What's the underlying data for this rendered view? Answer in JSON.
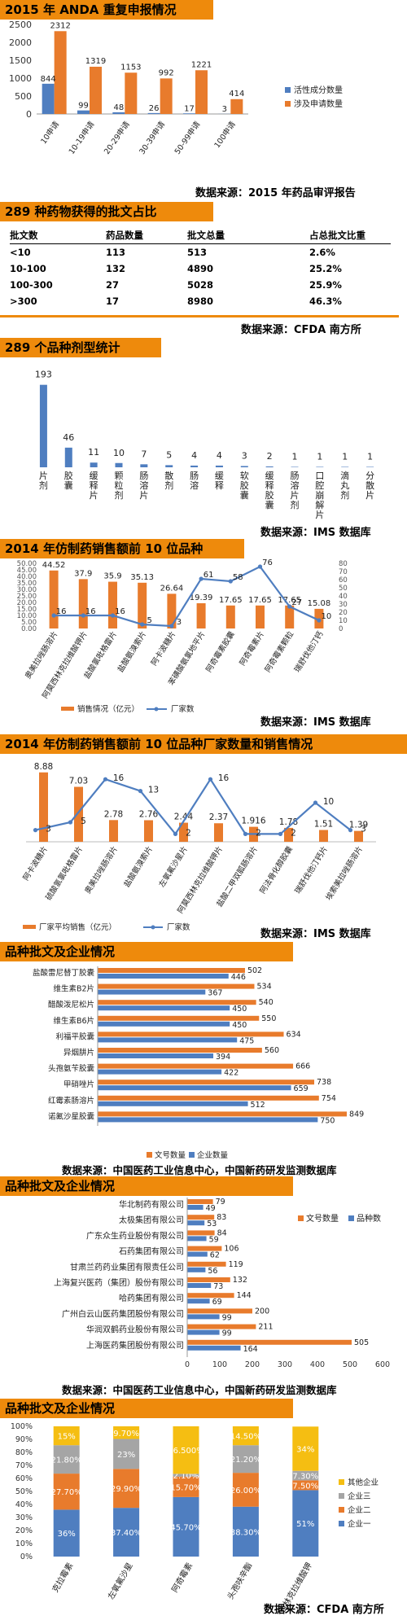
{
  "colors": {
    "header": "#ee8a0c",
    "blue": "#4f7ec0",
    "orange": "#e87b2c",
    "gray": "#a5a5a5",
    "yellow": "#f5be12",
    "darkblue": "#274f9c"
  },
  "sec1": {
    "title": "2015 年 ANDA 重复申报情况",
    "source": "数据来源：2015 年药品审评报告"
  },
  "sec2": {
    "title": "289 种药物获得的批文占比",
    "source": "数据来源：CFDA 南方所",
    "headers": [
      "批文数",
      "药品数量",
      "批文总量",
      "占总批文比重"
    ],
    "rows": [
      [
        "<10",
        "113",
        "513",
        "2.6%"
      ],
      [
        "10-100",
        "132",
        "4890",
        "25.2%"
      ],
      [
        "100-300",
        "27",
        "5028",
        "25.9%"
      ],
      [
        ">300",
        "17",
        "8980",
        "46.3%"
      ]
    ]
  },
  "sec3": {
    "title": "289 个品种剂型统计",
    "source": "数据来源：IMS 数据库"
  },
  "sec4": {
    "title": "2014 年仿制药销售额前 10 位品种",
    "source": "数据来源：IMS 数据库"
  },
  "sec5": {
    "title": "2014 年仿制药销售额前 10 位品种厂家数量和销售情况",
    "source": "数据来源：IMS 数据库"
  },
  "sec6": {
    "title": "品种批文及企业情况",
    "source": "数据来源：中国医药工业信息中心，中国新药研发监测数据库"
  },
  "sec7": {
    "title": "品种批文及企业情况",
    "source": "数据来源：中国医药工业信息中心，中国新药研发监测数据库"
  },
  "sec8": {
    "title": "品种批文及企业情况",
    "source": "数据来源：CFDA 南方所"
  },
  "chart_data": [
    {
      "type": "bar",
      "categories": [
        "10申请",
        "10-19申请",
        "20-29申请",
        "30-39申请",
        "50-99申请",
        "100申请"
      ],
      "series": [
        {
          "name": "活性成分数量",
          "values": [
            844,
            99,
            48,
            26,
            17,
            3
          ]
        },
        {
          "name": "涉及申请数量",
          "values": [
            2312,
            1319,
            1153,
            992,
            1221,
            414
          ]
        }
      ],
      "ylim": [
        0,
        2500
      ],
      "yticks": [
        0,
        500,
        1000,
        1500,
        2000,
        2500
      ],
      "legend": "right"
    },
    {
      "type": "bar",
      "categories": [
        "片剂",
        "胶囊",
        "缓释片",
        "颗粒剂",
        "肠溶片",
        "散剂",
        "肠溶",
        "缓释",
        "软胶囊",
        "缓释胶囊",
        "肠溶片剂",
        "口腔崩解片",
        "滴丸剂",
        "分散片"
      ],
      "values": [
        193,
        46,
        11,
        10,
        7,
        5,
        4,
        4,
        3,
        2,
        1,
        1,
        1,
        1
      ],
      "grid": false
    },
    {
      "type": "bar",
      "categories": [
        "奥美拉唑肠溶片",
        "阿莫西林克拉维酸钾片",
        "盐酸氯吡格雷片",
        "盐酸氨溴索片",
        "阿卡波糖片",
        "苯磺酸氨氯地平片",
        "阿奇霉素胶囊",
        "阿奇霉素片",
        "阿奇霉素颗粒",
        "瑞舒伐他汀钙"
      ],
      "series": [
        {
          "name": "销售情况（亿元）",
          "values": [
            44.52,
            37.9,
            35.9,
            35.13,
            26.64,
            19.39,
            17.65,
            17.65,
            17.65,
            15.08
          ]
        },
        {
          "name": "厂家数",
          "values": [
            16,
            16,
            16,
            5,
            3,
            61,
            58,
            76,
            27,
            10
          ]
        }
      ],
      "ylim": [
        0,
        50
      ],
      "y2lim": [
        0,
        80
      ],
      "yticks": [
        "0.00",
        "5.00",
        "10.00",
        "15.00",
        "20.00",
        "25.00",
        "30.00",
        "35.00",
        "40.00",
        "45.00",
        "50.00"
      ],
      "y2ticks": [
        0,
        10,
        20,
        30,
        40,
        50,
        60,
        70,
        80
      ],
      "legend": "bottom"
    },
    {
      "type": "bar",
      "categories": [
        "阿卡波糖片",
        "硫酸氢氯吡格雷片",
        "奥美拉唑肠溶片",
        "盐酸氨溴索片",
        "左氧氟沙星片",
        "阿莫西林克拉维酸钾片",
        "盐酸二甲双胍肠溶片",
        "阿法骨化醇胶囊",
        "瑞舒伐他汀钙片",
        "埃索美拉唑肠溶片"
      ],
      "series": [
        {
          "name": "厂家平均销售（亿元）",
          "values": [
            8.88,
            7.03,
            2.78,
            2.76,
            2.44,
            2.37,
            1.916,
            1.78,
            1.51,
            1.39
          ]
        },
        {
          "name": "厂家数",
          "values": [
            3,
            5,
            16,
            13,
            2,
            16,
            2,
            2,
            10,
            3
          ]
        }
      ],
      "legend": "bottom"
    },
    {
      "type": "bar",
      "orientation": "horizontal",
      "categories": [
        "盐酸雷尼替丁胶囊",
        "维生素B2片",
        "醋酸泼尼松片",
        "维生素B6片",
        "利福平胶囊",
        "异烟肼片",
        "头孢氨苄胶囊",
        "甲硝唑片",
        "红霉素肠溶片",
        "诺氟沙星胶囊"
      ],
      "series": [
        {
          "name": "文号数量",
          "values": [
            502,
            534,
            540,
            550,
            634,
            560,
            666,
            738,
            754,
            849
          ]
        },
        {
          "name": "企业数量",
          "values": [
            446,
            367,
            450,
            450,
            475,
            394,
            422,
            659,
            512,
            750
          ]
        }
      ],
      "legend": "bottom"
    },
    {
      "type": "bar",
      "orientation": "horizontal",
      "categories": [
        "华北制药有限公司",
        "太极集团有限公司",
        "广东众生药业股份有限公司",
        "石药集团有限公司",
        "甘肃兰药药业集团有限责任公司",
        "上海复兴医药（集团）股份有限公司",
        "哈药集团有限公司",
        "广州白云山医药集团股份有限公司",
        "华润双鹤药业股份有限公司",
        "上海医药集团股份有限公司"
      ],
      "series": [
        {
          "name": "文号数量",
          "values": [
            79,
            83,
            84,
            106,
            119,
            132,
            144,
            200,
            211,
            505
          ]
        },
        {
          "name": "品种数",
          "values": [
            49,
            53,
            59,
            62,
            56,
            73,
            69,
            99,
            99,
            164
          ]
        }
      ],
      "xticks": [
        0,
        100,
        200,
        300,
        400,
        500,
        600
      ],
      "legend": "top-right"
    },
    {
      "type": "bar",
      "stacked": true,
      "categories": [
        "克拉霉素",
        "左氧氟沙星",
        "阿奇霉素",
        "头孢呋辛酯",
        "阿莫西林克拉维酸钾"
      ],
      "series": [
        {
          "name": "企业一",
          "values": [
            "36%",
            "37.40%",
            "45.70%",
            "38.30%",
            "51%"
          ]
        },
        {
          "name": "企业二",
          "values": [
            "27.70%",
            "29.90%",
            "15.70%",
            "26.00%",
            "7.50%"
          ]
        },
        {
          "name": "企业三",
          "values": [
            "21.80%",
            "23%",
            "2.10%",
            "21.20%",
            "7.30%"
          ]
        },
        {
          "name": "其他企业",
          "values": [
            "15%",
            "9.70%",
            "36.500%",
            "14.50%",
            "34%"
          ]
        }
      ],
      "yticks": [
        "0%",
        "10%",
        "20%",
        "30%",
        "40%",
        "50%",
        "60%",
        "70%",
        "80%",
        "90%",
        "100%"
      ],
      "legend": "right"
    }
  ]
}
